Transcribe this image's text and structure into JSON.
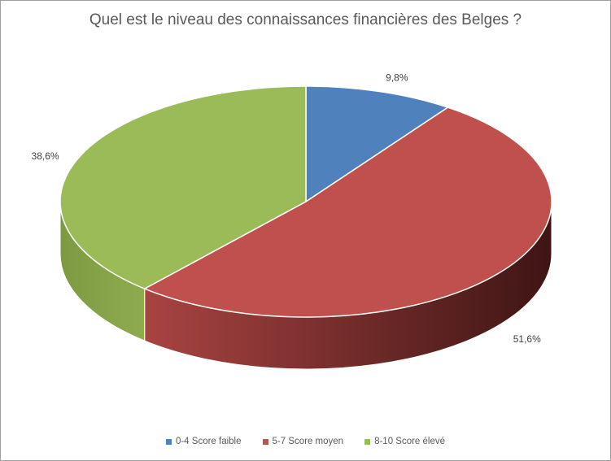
{
  "chart_data": {
    "type": "pie",
    "title": "Quel est le niveau des connaissances financières des Belges ?",
    "categories": [
      "0-4 Score faible",
      "5-7 Score moyen",
      "8-10 Score élevé"
    ],
    "values": [
      9.8,
      51.6,
      38.6
    ],
    "value_labels": [
      "9,8%",
      "51,6%",
      "38,6%"
    ],
    "colors": [
      "#4f81bd",
      "#c0504d",
      "#9bbb59"
    ],
    "legend_position": "bottom",
    "style": "3d"
  }
}
